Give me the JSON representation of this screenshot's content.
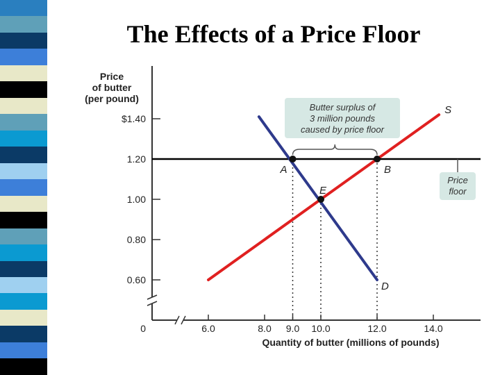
{
  "slide": {
    "title": "The Effects of a Price Floor",
    "stripe_colors": [
      "#2a7fbf",
      "#5fa0b8",
      "#0b3a66",
      "#3d7fd9",
      "#e8e8c8",
      "#000000",
      "#e8e8c8",
      "#5fa0b8",
      "#0b9ad1",
      "#0b3a66",
      "#9fd0f0",
      "#3d7fd9",
      "#e8e8c8",
      "#000000",
      "#5fa0b8",
      "#0b9ad1",
      "#0b3a66",
      "#9fd0f0",
      "#0b9ad1",
      "#e8e8c8",
      "#0b3a66",
      "#3d7fd9",
      "#000000"
    ]
  },
  "chart_data": {
    "type": "line",
    "title": "The Effects of a Price Floor",
    "ylabel": [
      "Price",
      "of butter",
      "(per pound)"
    ],
    "xlabel": "Quantity of butter (millions of pounds)",
    "x_ticks": [
      {
        "value": 0,
        "label": "0"
      },
      {
        "value": 6,
        "label": "6.0"
      },
      {
        "value": 8,
        "label": "8.0"
      },
      {
        "value": 9,
        "label": "9.0"
      },
      {
        "value": 10,
        "label": "10.0"
      },
      {
        "value": 12,
        "label": "12.0"
      },
      {
        "value": 14,
        "label": "14.0"
      }
    ],
    "y_ticks": [
      {
        "value": 0.6,
        "label": "0.60"
      },
      {
        "value": 0.8,
        "label": "0.80"
      },
      {
        "value": 1.0,
        "label": "1.00"
      },
      {
        "value": 1.2,
        "label": "1.20"
      },
      {
        "value": 1.4,
        "label": "$1.40"
      }
    ],
    "y_origin_label": "0",
    "xlim": [
      5,
      15.5
    ],
    "ylim": [
      0.4,
      1.65
    ],
    "axis_breaks": true,
    "series": [
      {
        "id": "supply",
        "name": "S",
        "color": "#e02020",
        "points": [
          [
            6.0,
            0.6
          ],
          [
            14.2,
            1.42
          ]
        ]
      },
      {
        "id": "demand",
        "name": "D",
        "color": "#2e3a8c",
        "points": [
          [
            7.8,
            1.41
          ],
          [
            12.0,
            0.6
          ]
        ]
      }
    ],
    "price_floor": {
      "value": 1.2,
      "label": [
        "Price",
        "floor"
      ],
      "color": "#000000"
    },
    "points": [
      {
        "id": "A",
        "label": "A",
        "x": 9.0,
        "y": 1.2
      },
      {
        "id": "B",
        "label": "B",
        "x": 12.0,
        "y": 1.2
      },
      {
        "id": "E",
        "label": "E",
        "x": 10.0,
        "y": 1.0
      }
    ],
    "surplus_annotation": [
      "Butter surplus of",
      "3 million pounds",
      "caused by price floor"
    ],
    "annotation_bg": "#d6e8e4"
  }
}
